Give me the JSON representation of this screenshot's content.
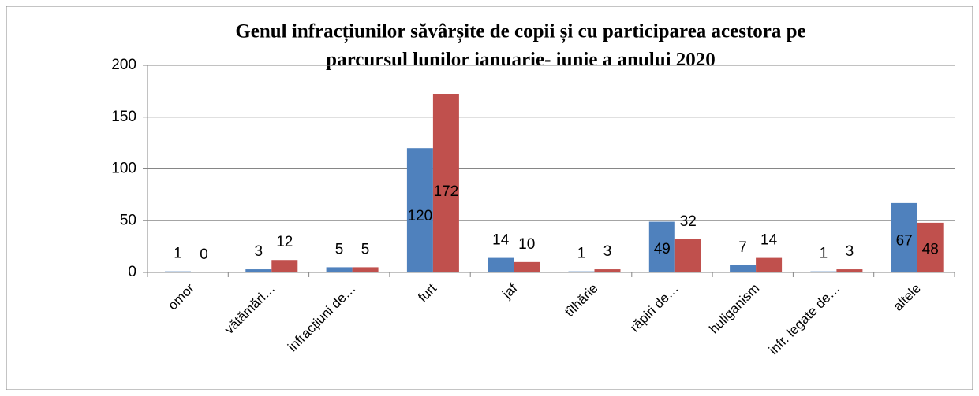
{
  "chart_data": {
    "type": "bar",
    "title": [
      "Genul infracțiunilor săvârșite de copii și cu participarea acestora  pe",
      "parcursul  lunilor ianuarie- iunie a anului 2020"
    ],
    "categories": [
      "omor",
      "vătămări…",
      "infracțiuni de…",
      "furt",
      "jaf",
      "tîlhărie",
      "răpiri de…",
      "huliganism",
      "infr. legate de…",
      "altele"
    ],
    "series": [
      {
        "color": "#4f81bd",
        "values": [
          1,
          3,
          5,
          120,
          14,
          1,
          49,
          7,
          1,
          67
        ]
      },
      {
        "color": "#c0504d",
        "values": [
          0,
          12,
          5,
          172,
          10,
          3,
          32,
          14,
          3,
          48
        ]
      }
    ],
    "ylim": [
      0,
      200
    ],
    "yticks": [
      0,
      50,
      100,
      150,
      200
    ],
    "grid": true
  }
}
